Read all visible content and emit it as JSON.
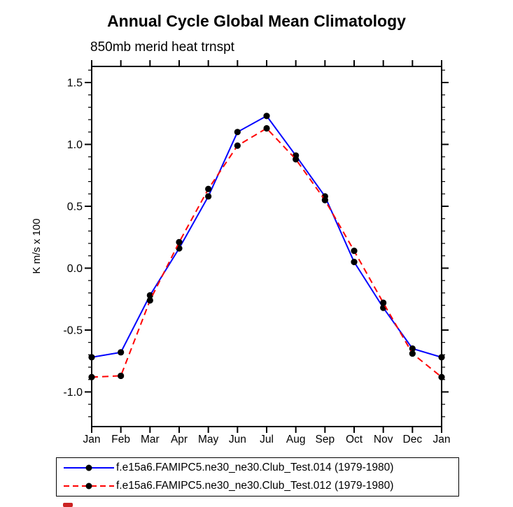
{
  "title": "Annual Cycle Global Mean Climatology",
  "subtitle": "850mb merid heat trnspt",
  "chart_data": {
    "type": "line",
    "categories": [
      "Jan",
      "Feb",
      "Mar",
      "Apr",
      "May",
      "Jun",
      "Jul",
      "Aug",
      "Sep",
      "Oct",
      "Nov",
      "Dec",
      "Jan"
    ],
    "series": [
      {
        "name": "f.e15a6.FAMIPC5.ne30_ne30.Club_Test.014 (1979-1980)",
        "color": "#0000ff",
        "style": "solid",
        "values": [
          -0.72,
          -0.68,
          -0.22,
          0.16,
          0.58,
          1.1,
          1.23,
          0.91,
          0.58,
          0.05,
          -0.32,
          -0.65,
          -0.72
        ]
      },
      {
        "name": "f.e15a6.FAMIPC5.ne30_ne30.Club_Test.012 (1979-1980)",
        "color": "#ff0000",
        "style": "dashed",
        "values": [
          -0.88,
          -0.87,
          -0.26,
          0.21,
          0.64,
          0.99,
          1.13,
          0.88,
          0.55,
          0.14,
          -0.28,
          -0.69,
          -0.88
        ]
      }
    ],
    "xlabel": "",
    "ylabel": "K m/s x 100",
    "ylim": [
      -1.28,
      1.63
    ],
    "y_major_ticks": [
      -1.0,
      -0.5,
      0.0,
      0.5,
      1.0,
      1.5
    ],
    "y_minor_step": 0.1,
    "marker": {
      "shape": "circle",
      "color": "#000000",
      "radius": 4.6
    },
    "grid": false,
    "legend_position": "bottom",
    "axis_color": "#000000"
  },
  "misc": {
    "logo_fragment_color": "#cc2222"
  }
}
